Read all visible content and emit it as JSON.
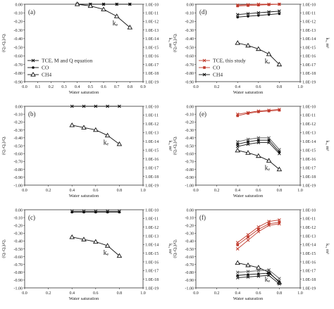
{
  "figure": {
    "yaxis_label": "(Qᵢ-Qₐ)/Qᵢ",
    "y2axis_label": "kᵣ, m²",
    "x_label": "Water saturation"
  },
  "colors": {
    "black": "#111111",
    "red": "#c0392b",
    "gray": "#555555"
  },
  "chart_data": [
    {
      "panel": "(a)",
      "type": "line",
      "xlim": [
        0,
        0.9
      ],
      "ylim": [
        -0.9,
        0
      ],
      "xticks": [
        "0.0",
        "0.1",
        "0.2",
        "0.3",
        "0.4",
        "0.5",
        "0.6",
        "0.7",
        "0.8",
        "0.9"
      ],
      "yticks": [
        "0.00",
        "-0.10",
        "-0.20",
        "-0.30",
        "-0.40",
        "-0.50",
        "-0.60",
        "-0.70",
        "-0.80",
        "-0.90"
      ],
      "y2ticks": [
        "1.0E-10",
        "1.0E-11",
        "1.0E-12",
        "1.0E-13",
        "1.0E-14",
        "1.0E-15",
        "1.0E-16",
        "1.0E-17",
        "1.0E-18",
        "1.0E-19"
      ],
      "legend": [
        "TCE, M and Q equation",
        "CO",
        "CH4"
      ],
      "annotation": "kₑ",
      "series": [
        {
          "color": "#111111",
          "marker": "x",
          "x": [
            0.4,
            0.5,
            0.6,
            0.7,
            0.8
          ],
          "y": [
            0,
            0,
            0,
            0,
            0
          ]
        },
        {
          "color": "#111111",
          "marker": "dot",
          "x": [
            0.4,
            0.5,
            0.6,
            0.7,
            0.8
          ],
          "y": [
            0,
            0,
            0,
            0,
            0
          ]
        },
        {
          "color": "#111111",
          "marker": "tri",
          "x": [
            0.4,
            0.5,
            0.6,
            0.7,
            0.8
          ],
          "y": [
            0,
            -0.02,
            -0.06,
            -0.14,
            -0.27
          ]
        }
      ]
    },
    {
      "panel": "(d)",
      "type": "line",
      "xlim": [
        0,
        1.0
      ],
      "ylim": [
        -0.9,
        0
      ],
      "xticks": [
        "0.0",
        "0.2",
        "0.4",
        "0.6",
        "0.8",
        "1.0"
      ],
      "yticks": [
        "0.00",
        "-0.10",
        "-0.20",
        "-0.30",
        "-0.40",
        "-0.50",
        "-0.60",
        "-0.70",
        "-0.80",
        "-0.90"
      ],
      "y2ticks": [
        "1.0E-10",
        "1.0E-11",
        "1.0E-12",
        "1.0E-13",
        "1.0E-14",
        "1.0E-15",
        "1.0E-16",
        "1.0E-17",
        "1.0E-18",
        "1.0E-19"
      ],
      "legend": [
        "TCE, this study",
        "CO",
        "CH4"
      ],
      "annotation": "kₑ",
      "series": [
        {
          "color": "#c0392b",
          "marker": "x",
          "x": [
            0.4,
            0.5,
            0.6,
            0.7,
            0.8
          ],
          "y": [
            -0.01,
            -0.005,
            0,
            0,
            0
          ]
        },
        {
          "color": "#c0392b",
          "marker": "sq",
          "x": [
            0.4,
            0.5,
            0.6,
            0.7,
            0.8
          ],
          "y": [
            -0.02,
            -0.015,
            -0.01,
            -0.005,
            0
          ]
        },
        {
          "color": "#111111",
          "marker": "x",
          "x": [
            0.4,
            0.5,
            0.6,
            0.7,
            0.8
          ],
          "y": [
            -0.12,
            -0.11,
            -0.1,
            -0.09,
            -0.08
          ]
        },
        {
          "color": "#111111",
          "marker": "dot",
          "x": [
            0.4,
            0.5,
            0.6,
            0.7,
            0.8
          ],
          "y": [
            -0.15,
            -0.14,
            -0.13,
            -0.12,
            -0.11
          ]
        },
        {
          "color": "#111111",
          "marker": "tri",
          "x": [
            0.4,
            0.5,
            0.6,
            0.7,
            0.8
          ],
          "y": [
            -0.45,
            -0.48,
            -0.52,
            -0.58,
            -0.7
          ]
        }
      ]
    },
    {
      "panel": "(b)",
      "type": "line",
      "xlim": [
        0,
        1.0
      ],
      "ylim": [
        -1.0,
        0
      ],
      "xticks": [
        "0.0",
        "0.2",
        "0.4",
        "0.6",
        "0.8",
        "1.0"
      ],
      "yticks": [
        "0.00",
        "-0.10",
        "-0.20",
        "-0.30",
        "-0.40",
        "-0.50",
        "-0.60",
        "-0.70",
        "-0.80",
        "-0.90",
        "-1.00"
      ],
      "y2ticks": [
        "1.0E-10",
        "1.0E-11",
        "1.0E-12",
        "1.0E-13",
        "1.0E-14",
        "1.0E-15",
        "1.0E-16",
        "1.0E-17",
        "1.0E-18",
        "1.0E-19"
      ],
      "annotation": "kₑ",
      "series": [
        {
          "color": "#111111",
          "marker": "x",
          "x": [
            0.4,
            0.5,
            0.6,
            0.7,
            0.8
          ],
          "y": [
            0,
            0,
            0,
            0,
            0
          ]
        },
        {
          "color": "#111111",
          "marker": "tri",
          "x": [
            0.4,
            0.5,
            0.6,
            0.7,
            0.8
          ],
          "y": [
            -0.24,
            -0.27,
            -0.3,
            -0.37,
            -0.48
          ]
        }
      ]
    },
    {
      "panel": "(e)",
      "type": "line",
      "xlim": [
        0,
        1.0
      ],
      "ylim": [
        -1.0,
        0
      ],
      "xticks": [
        "0.0",
        "0.2",
        "0.4",
        "0.6",
        "0.8",
        "1.0"
      ],
      "yticks": [
        "0.00",
        "-0.10",
        "-0.20",
        "-0.30",
        "-0.40",
        "-0.50",
        "-0.60",
        "-0.70",
        "-0.80",
        "-0.90",
        "-1.00"
      ],
      "y2ticks": [
        "1.0E-10",
        "1.0E-11",
        "1.0E-12",
        "1.0E-13",
        "1.0E-14",
        "1.0E-15",
        "1.0E-16",
        "1.0E-17",
        "1.0E-18",
        "1.0E-19"
      ],
      "annotation": "kₑ",
      "series": [
        {
          "color": "#c0392b",
          "marker": "x",
          "x": [
            0.4,
            0.5,
            0.6,
            0.7,
            0.8
          ],
          "y": [
            -0.1,
            -0.08,
            -0.06,
            -0.05,
            -0.04
          ]
        },
        {
          "color": "#c0392b",
          "marker": "sq",
          "x": [
            0.4,
            0.5,
            0.6,
            0.7,
            0.8
          ],
          "y": [
            -0.12,
            -0.09,
            -0.07,
            -0.06,
            -0.05
          ]
        },
        {
          "color": "#555555",
          "marker": "x",
          "x": [
            0.4,
            0.5,
            0.6,
            0.7,
            0.8
          ],
          "y": [
            -0.45,
            -0.42,
            -0.4,
            -0.4,
            -0.55
          ]
        },
        {
          "color": "#111111",
          "marker": "dot",
          "x": [
            0.4,
            0.5,
            0.6,
            0.7,
            0.8
          ],
          "y": [
            -0.48,
            -0.45,
            -0.43,
            -0.43,
            -0.58
          ]
        },
        {
          "color": "#111111",
          "marker": "x",
          "x": [
            0.4,
            0.5,
            0.6,
            0.7,
            0.8
          ],
          "y": [
            -0.51,
            -0.48,
            -0.46,
            -0.46,
            -0.6
          ]
        },
        {
          "color": "#111111",
          "marker": "tri",
          "x": [
            0.4,
            0.5,
            0.6,
            0.7,
            0.8
          ],
          "y": [
            -0.56,
            -0.59,
            -0.63,
            -0.69,
            -0.8
          ]
        }
      ]
    },
    {
      "panel": "(c)",
      "type": "line",
      "xlim": [
        0,
        1.0
      ],
      "ylim": [
        -1.0,
        0
      ],
      "xticks": [
        "0.0",
        "0.2",
        "0.4",
        "0.6",
        "0.8",
        "1.0"
      ],
      "yticks": [
        "0.00",
        "-0.10",
        "-0.20",
        "-0.30",
        "-0.40",
        "-0.50",
        "-0.60",
        "-0.70",
        "-0.80",
        "-0.90",
        "-1.00"
      ],
      "y2ticks": [
        "1.0E-10",
        "1.0E-11",
        "1.0E-12",
        "1.0E-13",
        "1.0E-14",
        "1.0E-15",
        "1.0E-16",
        "1.0E-17",
        "1.0E-18",
        "1.0E-19"
      ],
      "annotation": "kₑ",
      "series": [
        {
          "color": "#111111",
          "marker": "x",
          "x": [
            0.4,
            0.5,
            0.6,
            0.7,
            0.8
          ],
          "y": [
            -0.02,
            -0.02,
            -0.02,
            -0.02,
            -0.02
          ]
        },
        {
          "color": "#111111",
          "marker": "dot",
          "x": [
            0.4,
            0.5,
            0.6,
            0.7,
            0.8
          ],
          "y": [
            -0.03,
            -0.03,
            -0.03,
            -0.03,
            -0.03
          ]
        },
        {
          "color": "#111111",
          "marker": "tri",
          "x": [
            0.4,
            0.5,
            0.6,
            0.7,
            0.8
          ],
          "y": [
            -0.35,
            -0.38,
            -0.41,
            -0.46,
            -0.59
          ]
        }
      ]
    },
    {
      "panel": "(f)",
      "type": "line",
      "xlim": [
        0,
        1.0
      ],
      "ylim": [
        -1.0,
        0
      ],
      "xticks": [
        "0.0",
        "0.2",
        "0.4",
        "0.6",
        "0.8",
        "1.0"
      ],
      "yticks": [
        "0.00",
        "-0.10",
        "-0.20",
        "-0.30",
        "-0.40",
        "-0.50",
        "-0.60",
        "-0.70",
        "-0.80",
        "-0.90",
        "-1.00"
      ],
      "y2ticks": [
        "1.0E-10",
        "1.0E-11",
        "1.0E-12",
        "1.0E-13",
        "1.0E-14",
        "1.0E-15",
        "1.0E-16",
        "1.0E-17",
        "1.0E-18",
        "1.0E-19"
      ],
      "annotation": "kₑ",
      "series": [
        {
          "color": "#c0392b",
          "marker": "x",
          "x": [
            0.4,
            0.5,
            0.6,
            0.7,
            0.8
          ],
          "y": [
            -0.42,
            -0.32,
            -0.22,
            -0.15,
            -0.13
          ]
        },
        {
          "color": "#c0392b",
          "marker": "sq",
          "x": [
            0.4,
            0.5,
            0.6,
            0.7,
            0.8
          ],
          "y": [
            -0.45,
            -0.35,
            -0.25,
            -0.18,
            -0.16
          ]
        },
        {
          "color": "#c0392b",
          "marker": "x",
          "x": [
            0.4,
            0.5,
            0.6,
            0.7,
            0.8
          ],
          "y": [
            -0.5,
            -0.39,
            -0.28,
            -0.2,
            -0.18
          ]
        },
        {
          "color": "#111111",
          "marker": "tri",
          "x": [
            0.4,
            0.5,
            0.6,
            0.7,
            0.8
          ],
          "y": [
            -0.68,
            -0.71,
            -0.74,
            -0.8,
            -0.93
          ]
        },
        {
          "color": "#555555",
          "marker": "x",
          "x": [
            0.4,
            0.5,
            0.6,
            0.7,
            0.8
          ],
          "y": [
            -0.8,
            -0.79,
            -0.78,
            -0.77,
            -0.88
          ]
        },
        {
          "color": "#111111",
          "marker": "dot",
          "x": [
            0.4,
            0.5,
            0.6,
            0.7,
            0.8
          ],
          "y": [
            -0.84,
            -0.83,
            -0.82,
            -0.81,
            -0.92
          ]
        },
        {
          "color": "#111111",
          "marker": "x",
          "x": [
            0.4,
            0.5,
            0.6,
            0.7,
            0.8
          ],
          "y": [
            -0.87,
            -0.86,
            -0.85,
            -0.84,
            -0.95
          ]
        }
      ]
    }
  ]
}
